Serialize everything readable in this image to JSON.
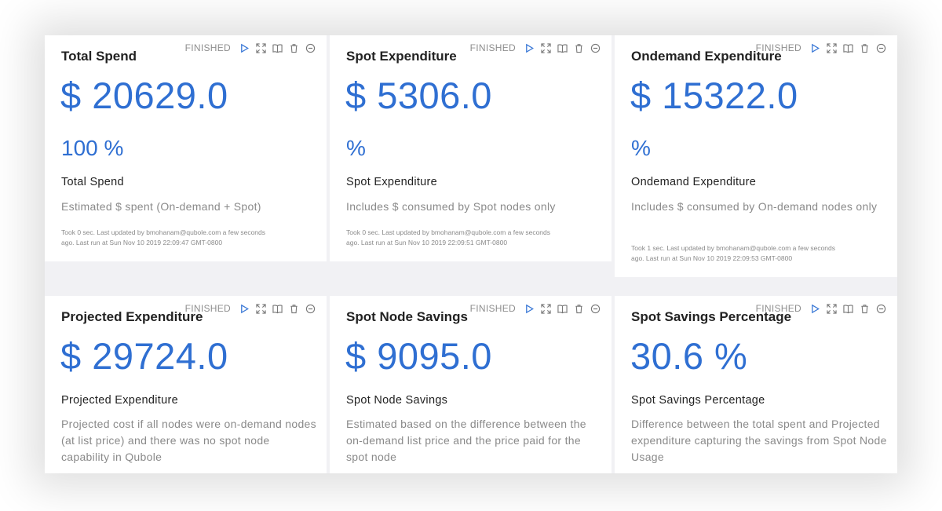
{
  "toolbar": {
    "status": "FINISHED",
    "icons": [
      "play-icon",
      "expand-icon",
      "book-icon",
      "trash-icon",
      "minus-circle-icon"
    ]
  },
  "colors": {
    "accent": "#2f6fd2",
    "title": "#222222",
    "muted": "#8a8a8a",
    "background": "#f1f1f4"
  },
  "cards": [
    {
      "title": "Total Spend",
      "value": "$ 20629.0",
      "percent": "100 %",
      "label": "Total Spend",
      "description": "Estimated $ spent (On-demand + Spot)",
      "meta_line1": "Took 0 sec. Last updated by bmohanam@qubole.com a few seconds",
      "meta_line2": "ago. Last run at Sun Nov 10 2019 22:09:47 GMT-0800"
    },
    {
      "title": "Spot Expenditure",
      "value": "$ 5306.0",
      "percent": "%",
      "label": "Spot Expenditure",
      "description": "Includes $ consumed by Spot nodes only",
      "meta_line1": "Took 0 sec. Last updated by bmohanam@qubole.com a few seconds",
      "meta_line2": "ago. Last run at Sun Nov 10 2019 22:09:51 GMT-0800"
    },
    {
      "title": "Ondemand Expenditure",
      "value": "$ 15322.0",
      "percent": "%",
      "label": "Ondemand Expenditure",
      "description": "Includes $ consumed by On-demand nodes only",
      "meta_line1": "Took 1 sec. Last updated by bmohanam@qubole.com a few seconds",
      "meta_line2": "ago. Last run at Sun Nov 10 2019 22:09:53 GMT-0800"
    },
    {
      "title": "Projected Expenditure",
      "value": "$ 29724.0",
      "label": "Projected Expenditure",
      "description": "Projected cost if all nodes were on-demand nodes (at list price) and there was no spot node capability in Qubole"
    },
    {
      "title": "Spot Node Savings",
      "value": "$ 9095.0",
      "label": "Spot Node Savings",
      "description": "Estimated based on the difference between the on-demand list price and the price paid for the spot node"
    },
    {
      "title": "Spot Savings Percentage",
      "value": "30.6 %",
      "label": "Spot Savings Percentage",
      "description": "Difference between the total spent and Projected expenditure capturing the savings from Spot Node Usage"
    }
  ]
}
